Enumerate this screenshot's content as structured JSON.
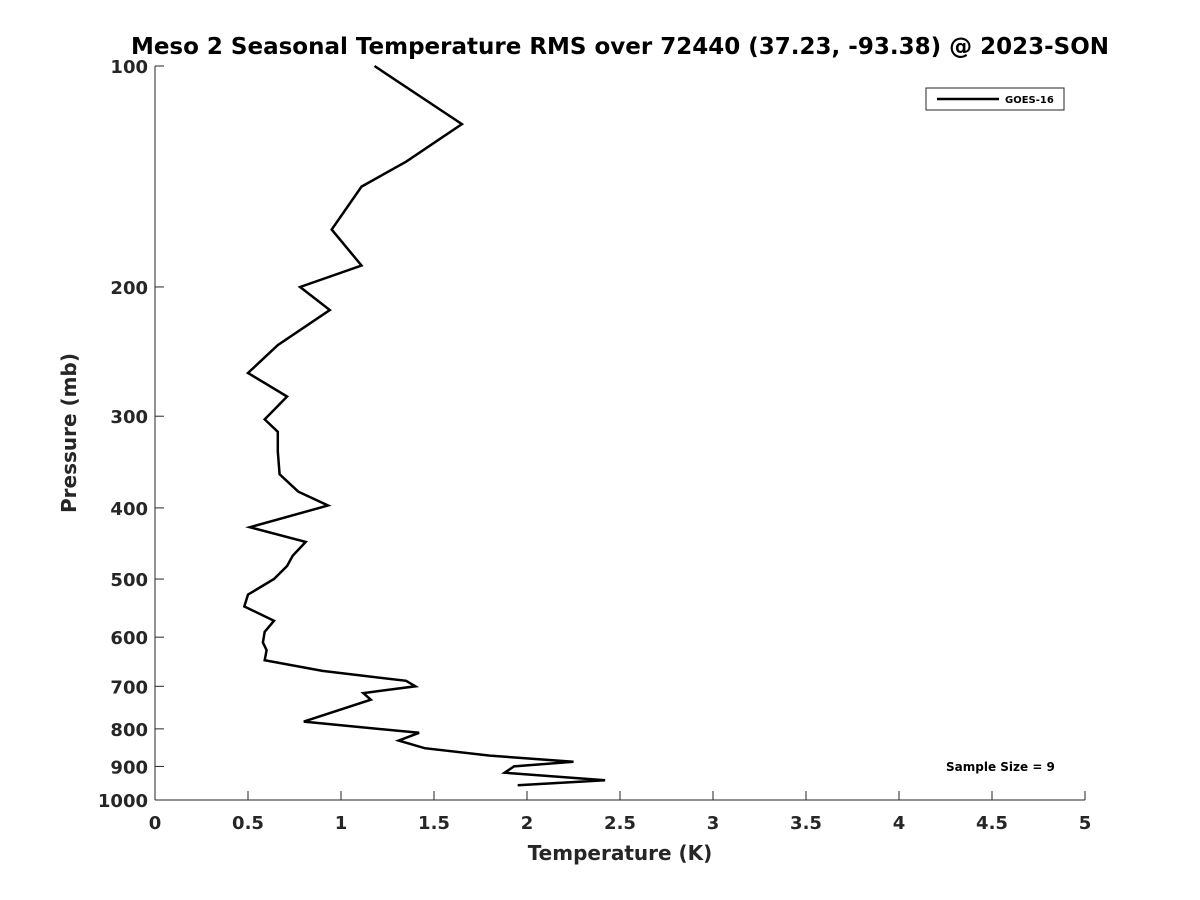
{
  "chart_data": {
    "type": "line",
    "title": "Meso 2 Seasonal Temperature RMS over 72440 (37.23, -93.38) @ 2023-SON",
    "xlabel": "Temperature (K)",
    "ylabel": "Pressure (mb)",
    "xlim": [
      0,
      5
    ],
    "ylim": [
      100,
      1000
    ],
    "yscale": "log",
    "y_reversed": true,
    "grid": false,
    "legend_position": "top-right",
    "xticks": [
      0,
      0.5,
      1,
      1.5,
      2,
      2.5,
      3,
      3.5,
      4,
      4.5,
      5
    ],
    "xtick_labels": [
      "0",
      "0.5",
      "1",
      "1.5",
      "2",
      "2.5",
      "3",
      "3.5",
      "4",
      "4.5",
      "5"
    ],
    "yticks": [
      100,
      200,
      300,
      400,
      500,
      600,
      700,
      800,
      900,
      1000
    ],
    "ytick_labels": [
      "100",
      "200",
      "300",
      "400",
      "500",
      "600",
      "700",
      "800",
      "900",
      "1000"
    ],
    "annotation": "Sample Size = 9",
    "series": [
      {
        "name": "GOES-16",
        "color": "#000000",
        "points": [
          [
            1.18,
            100
          ],
          [
            1.65,
            120
          ],
          [
            1.35,
            135
          ],
          [
            1.11,
            146
          ],
          [
            0.95,
            167
          ],
          [
            1.11,
            187
          ],
          [
            0.78,
            200
          ],
          [
            0.94,
            215
          ],
          [
            0.66,
            240
          ],
          [
            0.5,
            262
          ],
          [
            0.71,
            282
          ],
          [
            0.59,
            303
          ],
          [
            0.66,
            315
          ],
          [
            0.66,
            335
          ],
          [
            0.67,
            360
          ],
          [
            0.77,
            380
          ],
          [
            0.93,
            397
          ],
          [
            0.51,
            425
          ],
          [
            0.81,
            445
          ],
          [
            0.74,
            465
          ],
          [
            0.71,
            480
          ],
          [
            0.64,
            500
          ],
          [
            0.5,
            525
          ],
          [
            0.48,
            545
          ],
          [
            0.64,
            570
          ],
          [
            0.59,
            590
          ],
          [
            0.58,
            610
          ],
          [
            0.6,
            625
          ],
          [
            0.59,
            645
          ],
          [
            0.9,
            667
          ],
          [
            1.35,
            688
          ],
          [
            1.4,
            700
          ],
          [
            1.12,
            715
          ],
          [
            1.16,
            730
          ],
          [
            0.8,
            782
          ],
          [
            1.42,
            810
          ],
          [
            1.31,
            830
          ],
          [
            1.45,
            850
          ],
          [
            1.8,
            870
          ],
          [
            2.25,
            887
          ],
          [
            1.93,
            900
          ],
          [
            1.88,
            918
          ],
          [
            2.42,
            940
          ],
          [
            1.95,
            955
          ]
        ]
      }
    ]
  }
}
